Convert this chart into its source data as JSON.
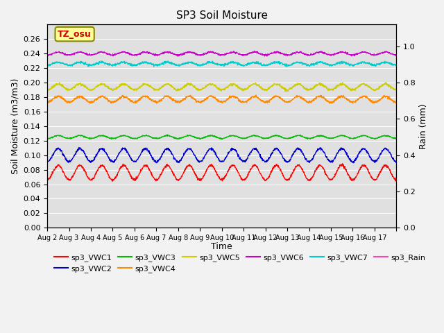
{
  "title": "SP3 Soil Moisture",
  "xlabel": "Time",
  "ylabel_left": "Soil Moisture (m3/m3)",
  "ylabel_right": "Rain (mm)",
  "annotation": "TZ_osu",
  "fig_facecolor": "#f2f2f2",
  "axes_facecolor": "#e0e0e0",
  "ylim_left": [
    0.0,
    0.28
  ],
  "ylim_right": [
    0.0,
    1.12
  ],
  "n_days": 16,
  "series": {
    "sp3_VWC1": {
      "color": "#ff0000",
      "base": 0.076,
      "amplitude": 0.01,
      "noise": 0.0008
    },
    "sp3_VWC2": {
      "color": "#0000cc",
      "base": 0.1,
      "amplitude": 0.009,
      "noise": 0.0008
    },
    "sp3_VWC3": {
      "color": "#00bb00",
      "base": 0.125,
      "amplitude": 0.002,
      "noise": 0.0004
    },
    "sp3_VWC4": {
      "color": "#ff8800",
      "base": 0.177,
      "amplitude": 0.004,
      "noise": 0.0008
    },
    "sp3_VWC5": {
      "color": "#cccc00",
      "base": 0.194,
      "amplitude": 0.004,
      "noise": 0.0008
    },
    "sp3_VWC6": {
      "color": "#cc00cc",
      "base": 0.24,
      "amplitude": 0.002,
      "noise": 0.0006
    },
    "sp3_VWC7": {
      "color": "#00cccc",
      "base": 0.226,
      "amplitude": 0.002,
      "noise": 0.0008
    },
    "sp3_Rain": {
      "color": "#ff44aa",
      "base": 0.0,
      "amplitude": 0.0,
      "noise": 0.0
    }
  },
  "xtick_labels": [
    "Aug 2",
    "Aug 3",
    "Aug 4",
    "Aug 5",
    "Aug 6",
    "Aug 7",
    "Aug 8",
    "Aug 9",
    "Aug 10",
    "Aug 11",
    "Aug 12",
    "Aug 13",
    "Aug 14",
    "Aug 15",
    "Aug 16",
    "Aug 17"
  ],
  "legend_order": [
    "sp3_VWC1",
    "sp3_VWC2",
    "sp3_VWC3",
    "sp3_VWC4",
    "sp3_VWC5",
    "sp3_VWC6",
    "sp3_VWC7",
    "sp3_Rain"
  ],
  "yticks_left": [
    0.0,
    0.02,
    0.04,
    0.06,
    0.08,
    0.1,
    0.12,
    0.14,
    0.16,
    0.18,
    0.2,
    0.22,
    0.24,
    0.26
  ],
  "yticks_right": [
    0.0,
    0.2,
    0.4,
    0.6,
    0.8,
    1.0
  ]
}
